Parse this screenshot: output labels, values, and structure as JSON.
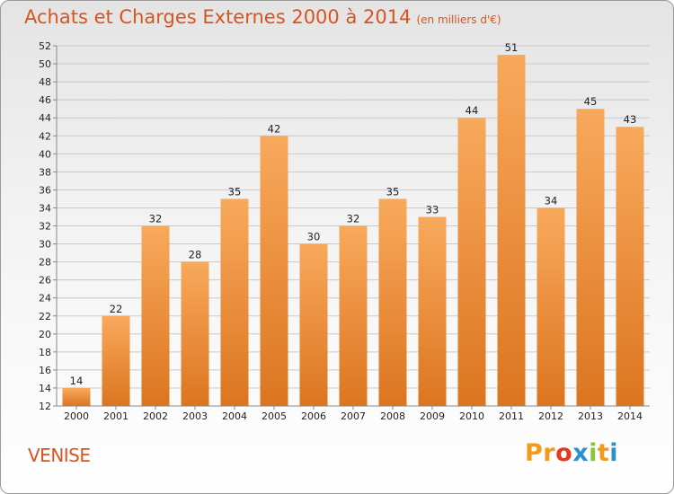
{
  "header": {
    "title": "Achats et Charges Externes 2000 à 2014",
    "unit": "(en milliers d'€)"
  },
  "footer": {
    "place": "VENISE",
    "logo_text": "Proxiti"
  },
  "colors": {
    "accent": "#d8541f",
    "bar_light": "#f8a95c",
    "bar_dark": "#dc7520",
    "logo_letters": [
      "#f29a1c",
      "#f29a1c",
      "#e4381f",
      "#2b8fd0",
      "#8cc63e",
      "#f29a1c",
      "#2b8fd0"
    ]
  },
  "chart_data": {
    "type": "bar",
    "title": "Achats et Charges Externes 2000 à 2014",
    "subtitle": "(en milliers d'€)",
    "xlabel": "",
    "ylabel": "",
    "categories": [
      "2000",
      "2001",
      "2002",
      "2003",
      "2004",
      "2005",
      "2006",
      "2007",
      "2008",
      "2009",
      "2010",
      "2011",
      "2012",
      "2013",
      "2014"
    ],
    "values": [
      14,
      22,
      32,
      28,
      35,
      42,
      30,
      32,
      35,
      33,
      44,
      51,
      34,
      45,
      43
    ],
    "ylim": [
      12,
      52
    ],
    "yticks": [
      12,
      14,
      16,
      18,
      20,
      22,
      24,
      26,
      28,
      30,
      32,
      34,
      36,
      38,
      40,
      42,
      44,
      46,
      48,
      50,
      52
    ],
    "grid": true,
    "legend": "none"
  }
}
